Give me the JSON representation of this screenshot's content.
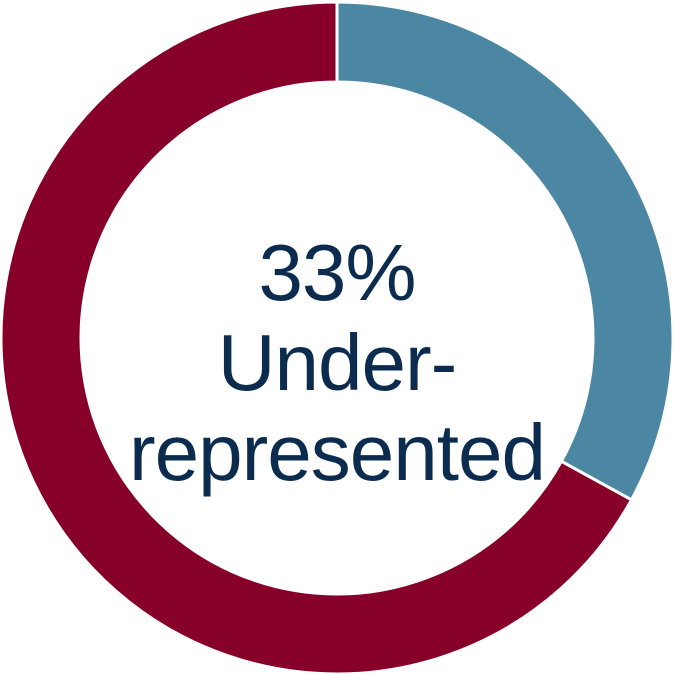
{
  "chart_data": {
    "type": "pie",
    "style": "donut",
    "slices": [
      {
        "label": "Under-represented",
        "value": 33,
        "color": "#4b87a3"
      },
      {
        "label": "",
        "value": 67,
        "color": "#87002a"
      }
    ],
    "center_text": {
      "value": "33%",
      "line1": "Under-",
      "line2": "represented"
    },
    "separator_color": "#ffffff",
    "text_color": "#0c2c4f",
    "neighbor_ring_color": "#87002a"
  }
}
